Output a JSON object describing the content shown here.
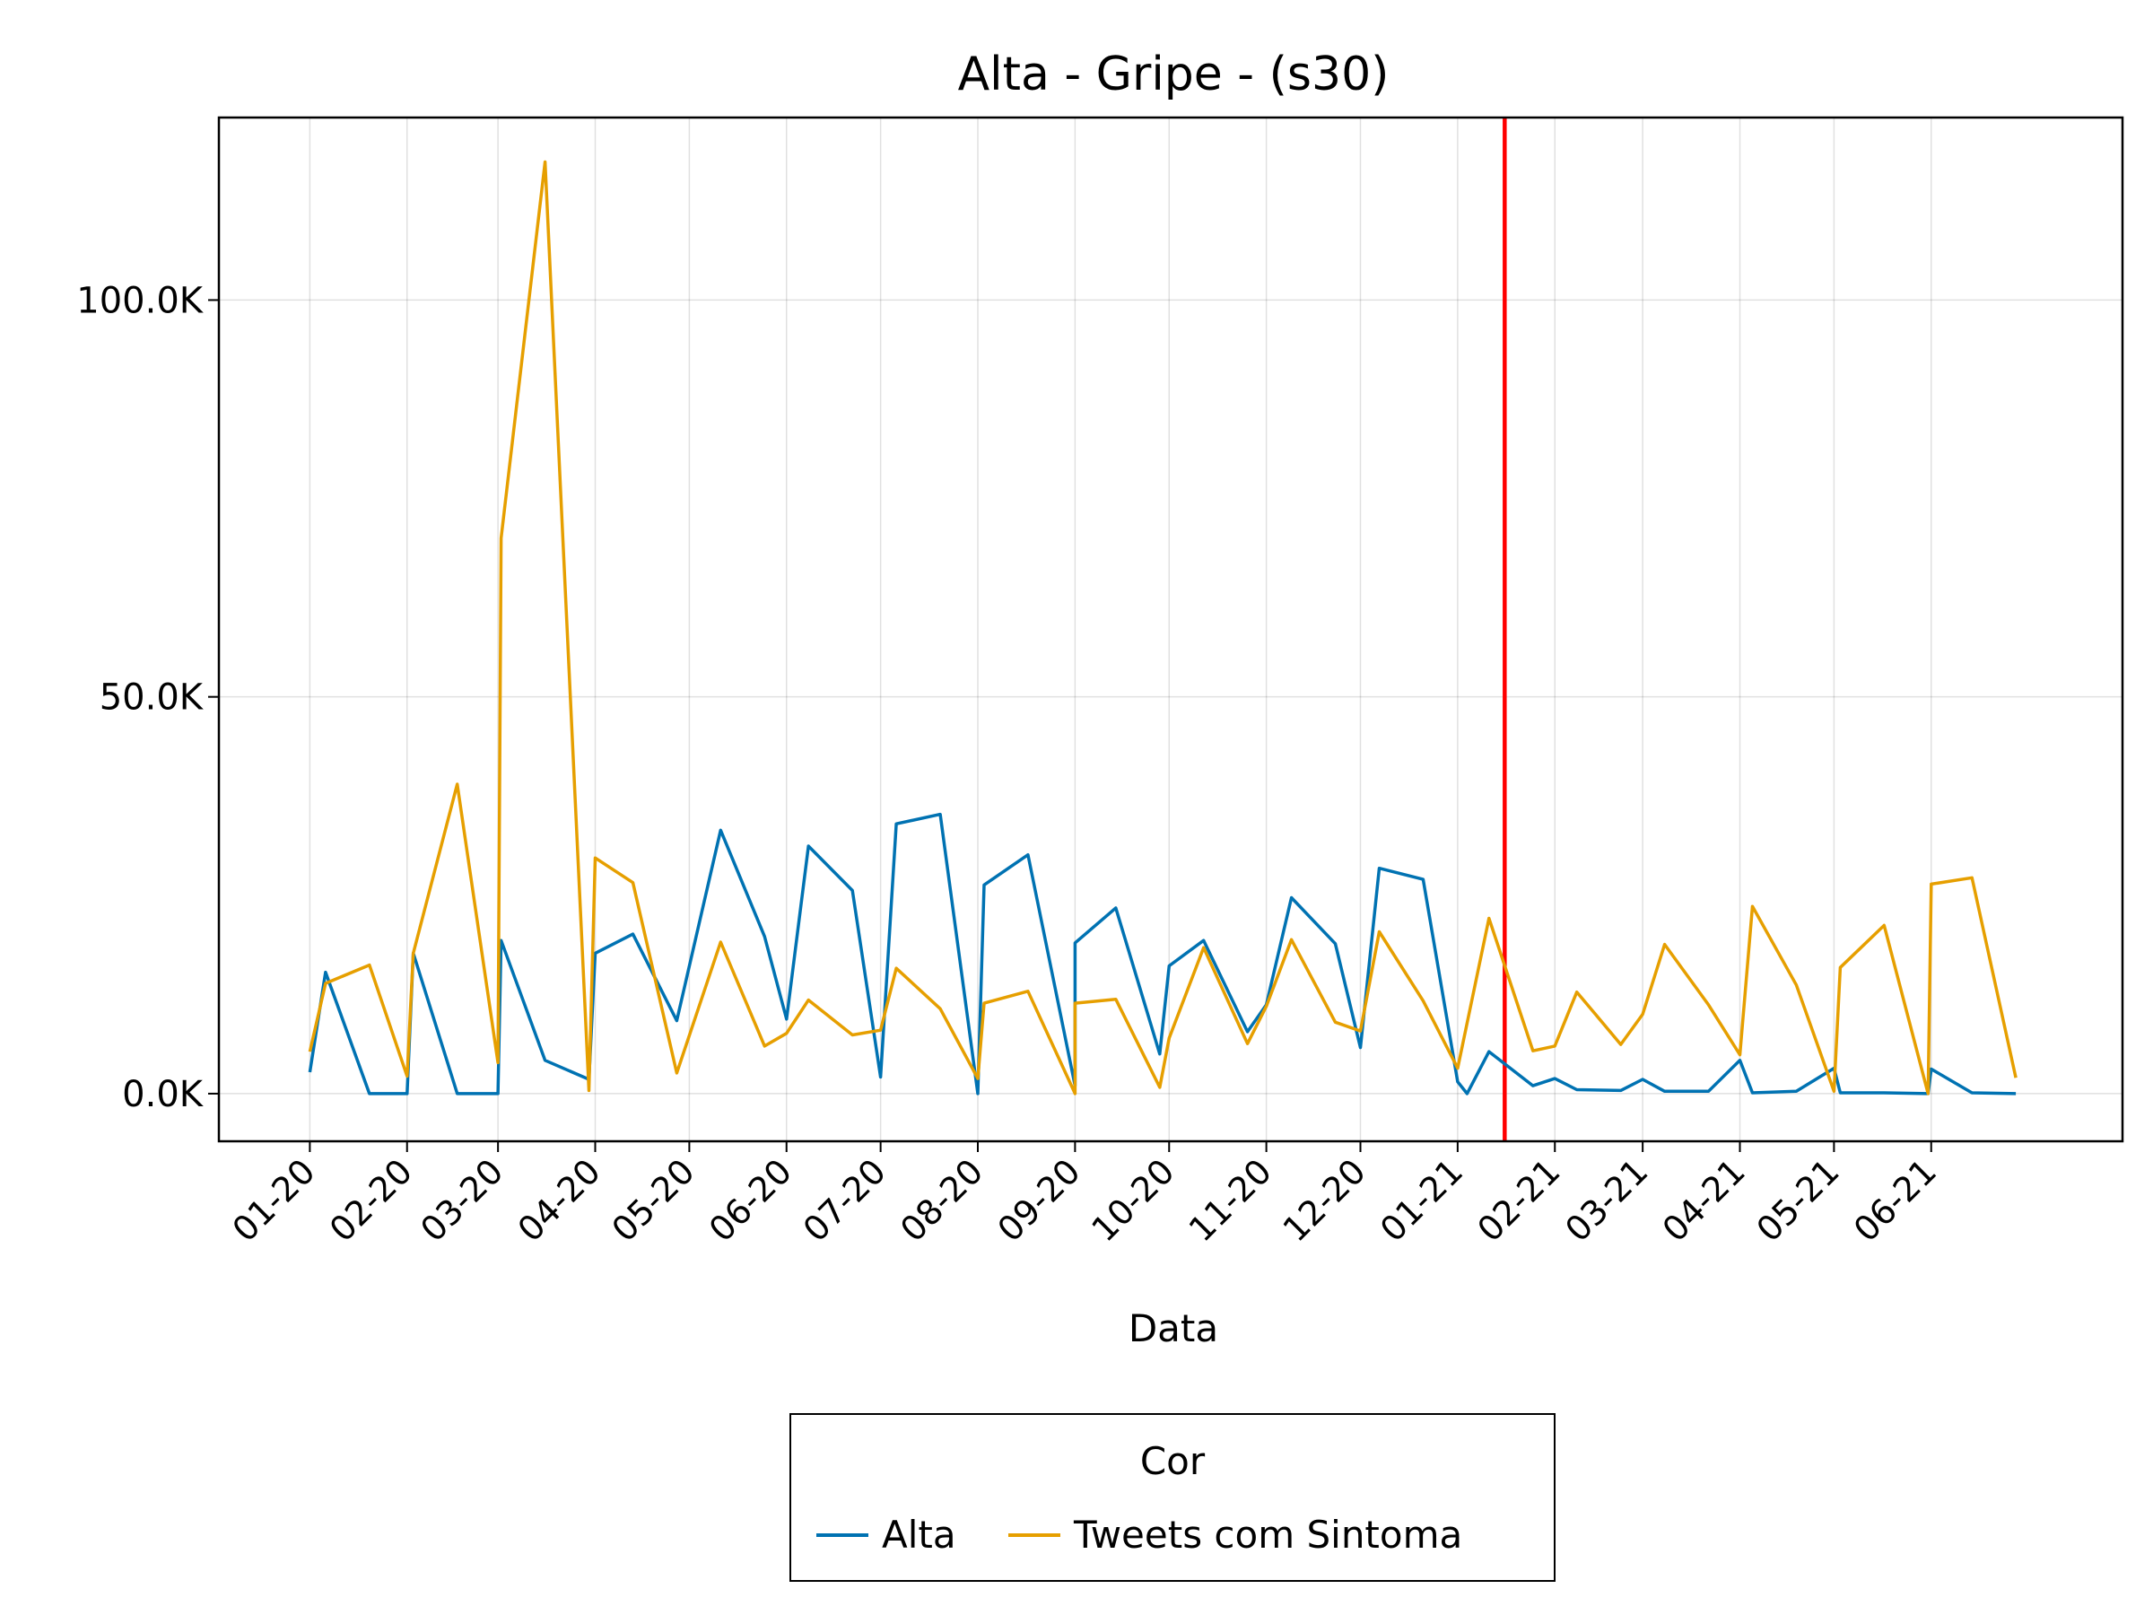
{
  "chart_data": {
    "type": "line",
    "title": "Alta - Gripe - (s30)",
    "xlabel": "Data",
    "ylabel": "",
    "x_tick_labels": [
      "01-20",
      "02-20",
      "03-20",
      "04-20",
      "05-20",
      "06-20",
      "07-20",
      "08-20",
      "09-20",
      "10-20",
      "11-20",
      "12-20",
      "01-21",
      "02-21",
      "03-21",
      "04-21",
      "05-21",
      "06-21"
    ],
    "y_ticks": [
      0,
      50000,
      100000
    ],
    "y_tick_labels": [
      "0.0K",
      "50.0K",
      "100.0K"
    ],
    "ylim": [
      -6000,
      123000
    ],
    "xlim": [
      "2019-12-03",
      "2021-08-01"
    ],
    "grid": true,
    "vline": {
      "x": "2021-01-16",
      "color": "#ff0000"
    },
    "legend": {
      "title": "Cor",
      "position": "bottom-center"
    },
    "series": [
      {
        "name": "Alta",
        "color": "#0072b2",
        "points": [
          [
            "2020-01-01",
            2700
          ],
          [
            "2020-01-06",
            15300
          ],
          [
            "2020-01-20",
            0
          ],
          [
            "2020-02-01",
            0
          ],
          [
            "2020-02-03",
            17700
          ],
          [
            "2020-02-17",
            0
          ],
          [
            "2020-03-01",
            0
          ],
          [
            "2020-03-02",
            19300
          ],
          [
            "2020-03-16",
            4200
          ],
          [
            "2020-03-30",
            1800
          ],
          [
            "2020-04-01",
            17700
          ],
          [
            "2020-04-13",
            20100
          ],
          [
            "2020-04-27",
            9200
          ],
          [
            "2020-05-11",
            33200
          ],
          [
            "2020-05-25",
            19800
          ],
          [
            "2020-06-01",
            9400
          ],
          [
            "2020-06-08",
            31200
          ],
          [
            "2020-06-22",
            25600
          ],
          [
            "2020-07-01",
            2100
          ],
          [
            "2020-07-06",
            34000
          ],
          [
            "2020-07-20",
            35200
          ],
          [
            "2020-08-01",
            0
          ],
          [
            "2020-08-03",
            26300
          ],
          [
            "2020-08-17",
            30100
          ],
          [
            "2020-09-01",
            1000
          ],
          [
            "2020-09-01",
            19000
          ],
          [
            "2020-09-14",
            23400
          ],
          [
            "2020-09-28",
            5000
          ],
          [
            "2020-10-01",
            16100
          ],
          [
            "2020-10-12",
            19300
          ],
          [
            "2020-10-26",
            7800
          ],
          [
            "2020-11-01",
            11200
          ],
          [
            "2020-11-09",
            24700
          ],
          [
            "2020-11-23",
            18900
          ],
          [
            "2020-12-01",
            5800
          ],
          [
            "2020-12-07",
            28400
          ],
          [
            "2020-12-21",
            27000
          ],
          [
            "2021-01-01",
            1500
          ],
          [
            "2021-01-04",
            0
          ],
          [
            "2021-01-11",
            5300
          ],
          [
            "2021-01-25",
            1000
          ],
          [
            "2021-02-01",
            1900
          ],
          [
            "2021-02-08",
            500
          ],
          [
            "2021-02-22",
            400
          ],
          [
            "2021-03-01",
            1800
          ],
          [
            "2021-03-08",
            300
          ],
          [
            "2021-03-22",
            300
          ],
          [
            "2021-04-01",
            4200
          ],
          [
            "2021-04-05",
            100
          ],
          [
            "2021-04-19",
            300
          ],
          [
            "2021-05-01",
            3200
          ],
          [
            "2021-05-03",
            100
          ],
          [
            "2021-05-17",
            100
          ],
          [
            "2021-05-31",
            0
          ],
          [
            "2021-06-01",
            3100
          ],
          [
            "2021-06-14",
            100
          ],
          [
            "2021-06-28",
            0
          ]
        ]
      },
      {
        "name": "Tweets com Sintoma",
        "color": "#e69f00",
        "points": [
          [
            "2020-01-01",
            5300
          ],
          [
            "2020-01-06",
            13900
          ],
          [
            "2020-01-20",
            16200
          ],
          [
            "2020-02-01",
            2200
          ],
          [
            "2020-02-03",
            17700
          ],
          [
            "2020-02-17",
            39000
          ],
          [
            "2020-03-01",
            3900
          ],
          [
            "2020-03-02",
            70000
          ],
          [
            "2020-03-16",
            117400
          ],
          [
            "2020-03-30",
            400
          ],
          [
            "2020-04-01",
            29700
          ],
          [
            "2020-04-13",
            26600
          ],
          [
            "2020-04-27",
            2600
          ],
          [
            "2020-05-11",
            19100
          ],
          [
            "2020-05-25",
            6000
          ],
          [
            "2020-06-01",
            7600
          ],
          [
            "2020-06-08",
            11800
          ],
          [
            "2020-06-22",
            7400
          ],
          [
            "2020-07-01",
            8000
          ],
          [
            "2020-07-06",
            15800
          ],
          [
            "2020-07-20",
            10700
          ],
          [
            "2020-08-01",
            1900
          ],
          [
            "2020-08-03",
            11400
          ],
          [
            "2020-08-17",
            12900
          ],
          [
            "2020-09-01",
            0
          ],
          [
            "2020-09-01",
            11400
          ],
          [
            "2020-09-14",
            11900
          ],
          [
            "2020-09-28",
            800
          ],
          [
            "2020-10-01",
            7000
          ],
          [
            "2020-10-12",
            18400
          ],
          [
            "2020-10-26",
            6300
          ],
          [
            "2020-11-01",
            11000
          ],
          [
            "2020-11-09",
            19400
          ],
          [
            "2020-11-23",
            9000
          ],
          [
            "2020-12-01",
            7900
          ],
          [
            "2020-12-07",
            20400
          ],
          [
            "2020-12-21",
            11700
          ],
          [
            "2021-01-01",
            3200
          ],
          [
            "2021-01-11",
            22100
          ],
          [
            "2021-01-25",
            5400
          ],
          [
            "2021-02-01",
            6000
          ],
          [
            "2021-02-08",
            12800
          ],
          [
            "2021-02-22",
            6200
          ],
          [
            "2021-03-01",
            10000
          ],
          [
            "2021-03-08",
            18800
          ],
          [
            "2021-03-22",
            11200
          ],
          [
            "2021-04-01",
            4900
          ],
          [
            "2021-04-05",
            23600
          ],
          [
            "2021-04-19",
            13700
          ],
          [
            "2021-05-01",
            300
          ],
          [
            "2021-05-03",
            15900
          ],
          [
            "2021-05-17",
            21200
          ],
          [
            "2021-05-31",
            0
          ],
          [
            "2021-06-01",
            26400
          ],
          [
            "2021-06-14",
            27200
          ],
          [
            "2021-06-28",
            2000
          ]
        ]
      }
    ]
  }
}
